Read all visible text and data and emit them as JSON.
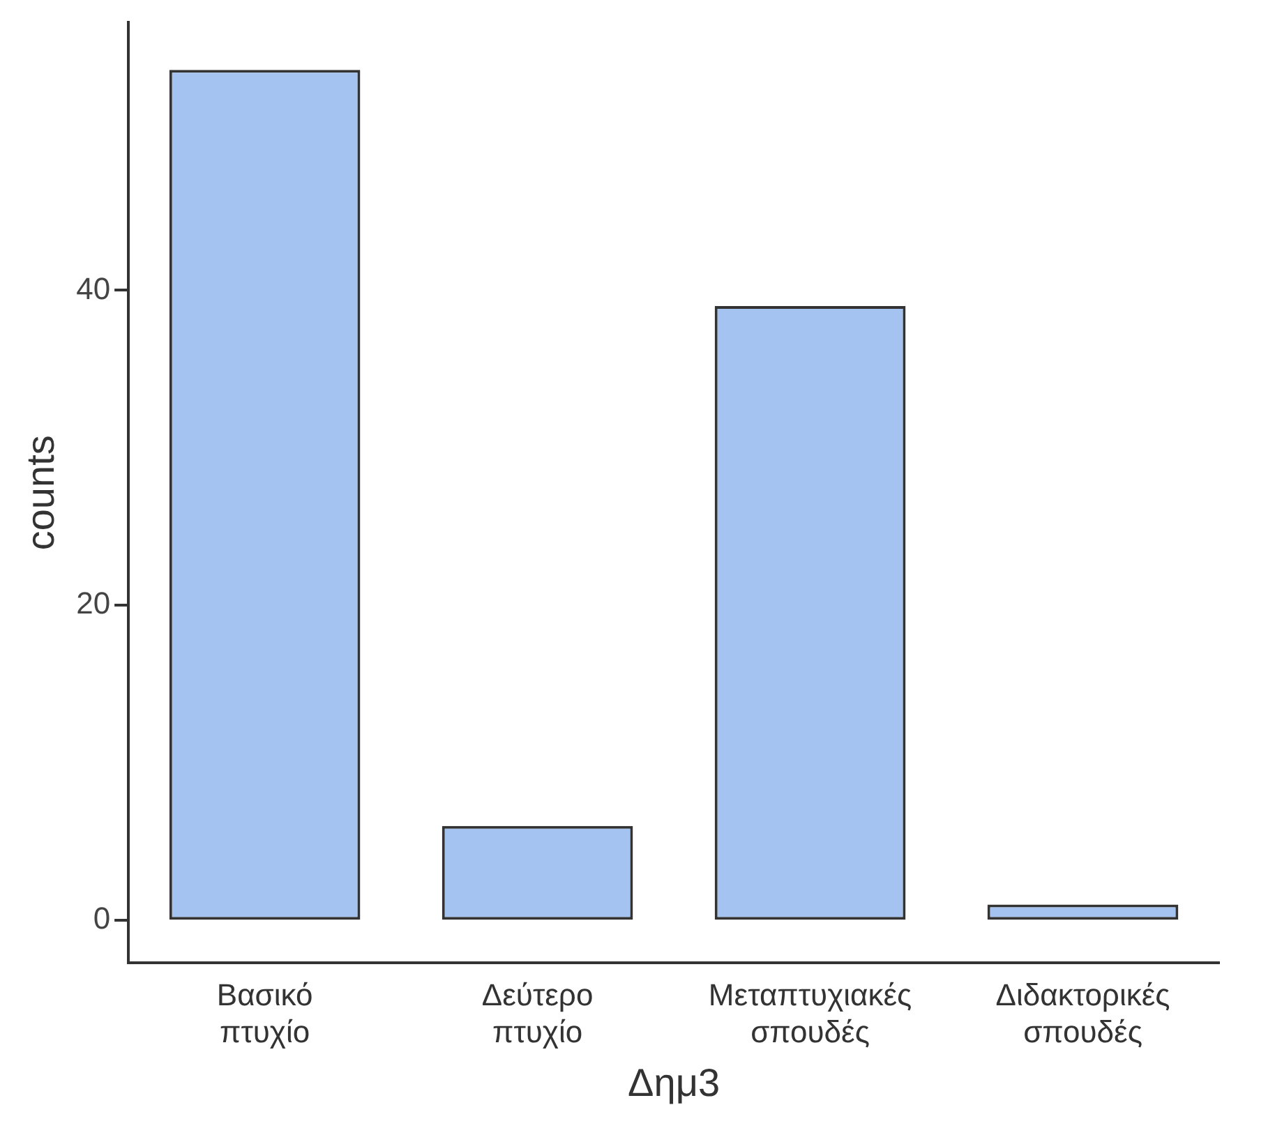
{
  "chart_data": {
    "type": "bar",
    "xlabel": "Δημ3",
    "ylabel": "counts",
    "categories": [
      "Βασικό πτυχίο",
      "Δεύτερο πτυχίο",
      "Μεταπτυχιακές σπουδές",
      "Διδακτορικές σπουδές"
    ],
    "values": [
      54,
      6,
      39,
      1
    ],
    "color": "#a4c3f0",
    "ylim": [
      -2.7,
      57
    ],
    "yticks": [
      0,
      20,
      40
    ],
    "grid": false,
    "legend": false
  }
}
